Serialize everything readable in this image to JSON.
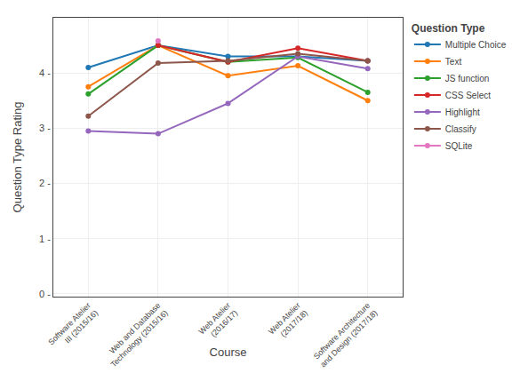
{
  "chart_data": {
    "type": "line",
    "xlabel": "Course",
    "ylabel": "Question Type Rating",
    "legend_title": "Question Type",
    "categories": [
      "Software Atelier\nIII (2015/16)",
      "Web and Database\nTechnology (2015/16)",
      "Web Atelier\n(2016/17)",
      "Web Atelier\n(2017/18)",
      "Software Architecture\nand Design (2017/18)"
    ],
    "series": [
      {
        "name": "Multiple Choice",
        "values": [
          4.1,
          4.5,
          4.3,
          4.3,
          4.22
        ]
      },
      {
        "name": "Text",
        "values": [
          3.75,
          4.5,
          3.95,
          4.13,
          3.5
        ]
      },
      {
        "name": "JS function",
        "values": [
          3.62,
          4.5,
          4.2,
          4.28,
          3.65
        ]
      },
      {
        "name": "CSS Select",
        "values": [
          null,
          4.5,
          4.2,
          4.45,
          4.22
        ]
      },
      {
        "name": "Highlight",
        "values": [
          2.95,
          2.9,
          3.45,
          4.3,
          4.08
        ]
      },
      {
        "name": "Classify",
        "values": [
          3.22,
          4.18,
          4.22,
          4.35,
          4.22
        ]
      },
      {
        "name": "SQLite",
        "values": [
          null,
          4.58,
          null,
          null,
          null
        ]
      }
    ],
    "marker": "circle",
    "ylim": [
      -0.05,
      5.0
    ],
    "yticks": [
      {
        "value": 0,
        "label": "0 -"
      },
      {
        "value": 1,
        "label": "1 -"
      },
      {
        "value": 2,
        "label": "2 -"
      },
      {
        "value": 3,
        "label": "3 -"
      },
      {
        "value": 4,
        "label": "4 -"
      }
    ],
    "grid": true,
    "legend": "right"
  }
}
